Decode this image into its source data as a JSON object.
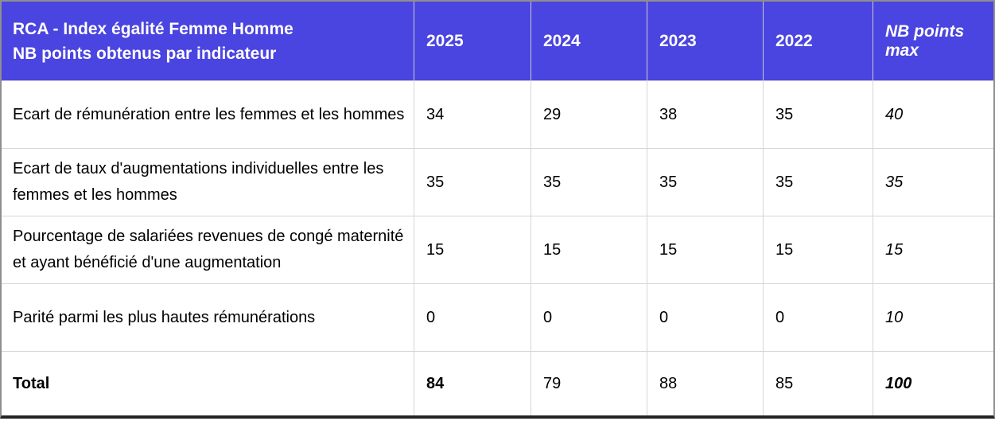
{
  "colors": {
    "header_bg": "#4a44e0",
    "header_text": "#ffffff",
    "grid_line": "#d6d6d6",
    "outer_border": "#8f8f8f",
    "bottom_border": "#242424",
    "body_text": "#000000"
  },
  "header": {
    "title_line1": "RCA - Index égalité Femme Homme",
    "title_line2": "NB points obtenus par indicateur",
    "col_2025": "2025",
    "col_2024": "2024",
    "col_2023": "2023",
    "col_2022": "2022",
    "col_max": "NB points max"
  },
  "rows": [
    {
      "indicator": "Ecart de rémunération entre les femmes et les hommes",
      "y2025": "34",
      "y2024": "29",
      "y2023": "38",
      "y2022": "35",
      "max": "40"
    },
    {
      "indicator": "Ecart de taux d'augmentations individuelles entre les femmes et les hommes",
      "y2025": "35",
      "y2024": "35",
      "y2023": "35",
      "y2022": "35",
      "max": "35"
    },
    {
      "indicator": "Pourcentage de salariées revenues de congé maternité et ayant bénéficié d'une augmentation",
      "y2025": "15",
      "y2024": "15",
      "y2023": "15",
      "y2022": "15",
      "max": "15"
    },
    {
      "indicator": "Parité parmi les plus hautes rémunérations",
      "y2025": "0",
      "y2024": "0",
      "y2023": "0",
      "y2022": "0",
      "max": "10"
    }
  ],
  "total": {
    "label": "Total",
    "y2025": "84",
    "y2024": "79",
    "y2023": "88",
    "y2022": "85",
    "max": "100"
  },
  "chart_data": {
    "type": "table",
    "title": "RCA - Index égalité Femme Homme NB points obtenus par indicateur",
    "columns": [
      "2025",
      "2024",
      "2023",
      "2022",
      "NB points max"
    ],
    "rows": [
      {
        "indicator": "Ecart de rémunération entre les femmes et les hommes",
        "values": [
          34,
          29,
          38,
          35,
          40
        ]
      },
      {
        "indicator": "Ecart de taux d'augmentations individuelles entre les femmes et les hommes",
        "values": [
          35,
          35,
          35,
          35,
          35
        ]
      },
      {
        "indicator": "Pourcentage de salariées revenues de congé maternité et ayant bénéficié d'une augmentation",
        "values": [
          15,
          15,
          15,
          15,
          15
        ]
      },
      {
        "indicator": "Parité parmi les plus hautes rémunérations",
        "values": [
          0,
          0,
          0,
          0,
          10
        ]
      },
      {
        "indicator": "Total",
        "values": [
          84,
          79,
          88,
          85,
          100
        ]
      }
    ]
  }
}
